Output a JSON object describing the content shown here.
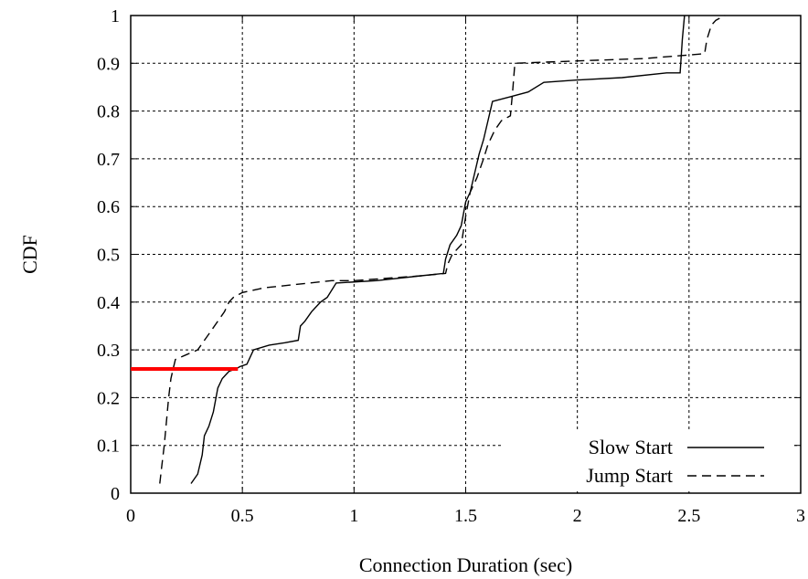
{
  "chart_data": {
    "type": "line",
    "title": "",
    "xlabel": "Connection Duration (sec)",
    "ylabel": "CDF",
    "xlim": [
      0,
      3
    ],
    "ylim": [
      0,
      1
    ],
    "x_ticks": [
      "0",
      "0.5",
      "1",
      "1.5",
      "2",
      "2.5",
      "3"
    ],
    "y_ticks": [
      "0",
      "0.1",
      "0.2",
      "0.3",
      "0.4",
      "0.5",
      "0.6",
      "0.7",
      "0.8",
      "0.9",
      "1"
    ],
    "grid": true,
    "legend_position": "bottom-right",
    "series": [
      {
        "name": "Slow Start",
        "style": "solid",
        "color": "#000000",
        "x": [
          0.27,
          0.3,
          0.32,
          0.33,
          0.35,
          0.37,
          0.39,
          0.41,
          0.44,
          0.47,
          0.49,
          0.52,
          0.55,
          0.62,
          0.69,
          0.75,
          0.76,
          0.78,
          0.81,
          0.83,
          0.85,
          0.88,
          0.92,
          1.1,
          1.3,
          1.4,
          1.41,
          1.43,
          1.46,
          1.48,
          1.5,
          1.52,
          1.54,
          1.56,
          1.58,
          1.6,
          1.62,
          1.7,
          1.78,
          1.85,
          2.0,
          2.2,
          2.4,
          2.46,
          2.47,
          2.48
        ],
        "y": [
          0.02,
          0.04,
          0.08,
          0.12,
          0.14,
          0.17,
          0.22,
          0.24,
          0.255,
          0.26,
          0.265,
          0.27,
          0.3,
          0.31,
          0.315,
          0.32,
          0.35,
          0.36,
          0.38,
          0.39,
          0.4,
          0.41,
          0.44,
          0.445,
          0.455,
          0.46,
          0.49,
          0.52,
          0.54,
          0.56,
          0.61,
          0.63,
          0.67,
          0.71,
          0.74,
          0.78,
          0.82,
          0.83,
          0.84,
          0.86,
          0.865,
          0.87,
          0.88,
          0.88,
          0.95,
          1.0
        ]
      },
      {
        "name": "Jump Start",
        "style": "dashed",
        "color": "#000000",
        "x": [
          0.13,
          0.14,
          0.15,
          0.16,
          0.17,
          0.18,
          0.19,
          0.2,
          0.25,
          0.3,
          0.36,
          0.39,
          0.42,
          0.44,
          0.46,
          0.48,
          0.5,
          0.6,
          0.8,
          0.9,
          1.0,
          1.3,
          1.41,
          1.42,
          1.44,
          1.46,
          1.48,
          1.5,
          1.52,
          1.55,
          1.58,
          1.6,
          1.63,
          1.66,
          1.7,
          1.71,
          1.72,
          2.0,
          2.3,
          2.57,
          2.58,
          2.6,
          2.62,
          2.66
        ],
        "y": [
          0.02,
          0.06,
          0.1,
          0.15,
          0.2,
          0.24,
          0.26,
          0.28,
          0.29,
          0.3,
          0.34,
          0.36,
          0.38,
          0.4,
          0.41,
          0.415,
          0.42,
          0.43,
          0.44,
          0.445,
          0.445,
          0.455,
          0.46,
          0.48,
          0.5,
          0.51,
          0.52,
          0.58,
          0.63,
          0.66,
          0.7,
          0.73,
          0.76,
          0.78,
          0.79,
          0.84,
          0.9,
          0.905,
          0.91,
          0.92,
          0.95,
          0.98,
          0.99,
          1.0
        ]
      }
    ],
    "annotations": [
      {
        "type": "highlight-line",
        "color": "#ff0000",
        "x": [
          0,
          0.48
        ],
        "y": [
          0.26,
          0.26
        ]
      }
    ]
  }
}
